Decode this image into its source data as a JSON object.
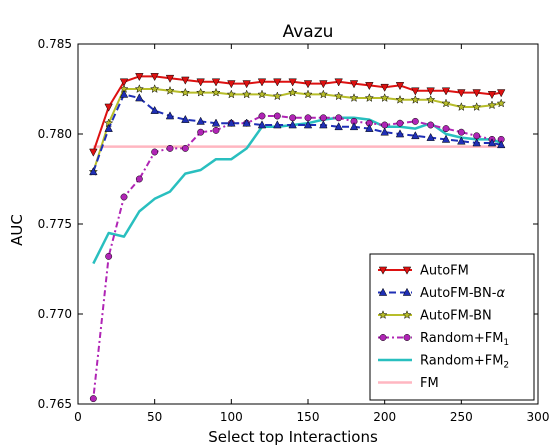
{
  "chart_data": {
    "type": "line",
    "title": "Avazu",
    "xlabel": "Select top Interactions",
    "ylabel": "AUC",
    "xlim": [
      0,
      300
    ],
    "ylim": [
      0.765,
      0.785
    ],
    "xticks": [
      0,
      50,
      100,
      150,
      200,
      250,
      300
    ],
    "yticks": [
      0.765,
      0.77,
      0.775,
      0.78,
      0.785
    ],
    "xtick_labels": [
      "0",
      "50",
      "100",
      "150",
      "200",
      "250",
      "300"
    ],
    "ytick_labels": [
      "0.765",
      "0.770",
      "0.775",
      "0.780",
      "0.785"
    ],
    "grid": false,
    "legend_position": "lower-right",
    "x": [
      10,
      20,
      30,
      40,
      50,
      60,
      70,
      80,
      90,
      100,
      110,
      120,
      130,
      140,
      150,
      160,
      170,
      180,
      190,
      200,
      210,
      220,
      230,
      240,
      250,
      260,
      270,
      276
    ],
    "series": [
      {
        "name": "AutoFM",
        "color": "#dd1111",
        "marker": "triangle-down",
        "dash": "solid",
        "values": [
          0.779,
          0.7815,
          0.7829,
          0.7832,
          0.7832,
          0.7831,
          0.783,
          0.7829,
          0.7829,
          0.7828,
          0.7828,
          0.7829,
          0.7829,
          0.7829,
          0.7828,
          0.7828,
          0.7829,
          0.7828,
          0.7827,
          0.7826,
          0.7827,
          0.7824,
          0.7824,
          0.7824,
          0.7823,
          0.7823,
          0.7822,
          0.7823
        ]
      },
      {
        "name": "AutoFM-BN-α",
        "name_base": "AutoFM-BN-",
        "name_sym": "α",
        "color": "#1f2fb5",
        "marker": "triangle-up",
        "dash": "dashed",
        "values": [
          0.7779,
          0.7803,
          0.7822,
          0.782,
          0.7813,
          0.781,
          0.7808,
          0.7807,
          0.7806,
          0.7806,
          0.7806,
          0.7805,
          0.7805,
          0.7805,
          0.7805,
          0.7805,
          0.7804,
          0.7804,
          0.7803,
          0.7801,
          0.78,
          0.7799,
          0.7798,
          0.7797,
          0.7796,
          0.7795,
          0.7795,
          0.7794
        ]
      },
      {
        "name": "AutoFM-BN",
        "color": "#b7bd2a",
        "marker": "star",
        "dash": "solid",
        "values": [
          0.7779,
          0.7806,
          0.7825,
          0.7825,
          0.7825,
          0.7824,
          0.7823,
          0.7823,
          0.7823,
          0.7822,
          0.7822,
          0.7822,
          0.7821,
          0.7823,
          0.7822,
          0.7822,
          0.7821,
          0.782,
          0.782,
          0.782,
          0.7819,
          0.7819,
          0.7819,
          0.7817,
          0.7815,
          0.7815,
          0.7816,
          0.7817
        ]
      },
      {
        "name": "Random+FM1",
        "name_base": "Random+FM",
        "name_sub": "1",
        "color": "#b025b5",
        "marker": "circle",
        "dash": "dashdot",
        "values": [
          0.7653,
          0.7732,
          0.7765,
          0.7775,
          0.779,
          0.7792,
          0.7792,
          0.7801,
          0.7802,
          0.7806,
          0.7806,
          0.781,
          0.781,
          0.7809,
          0.7809,
          0.7809,
          0.7809,
          0.7807,
          0.7806,
          0.7805,
          0.7806,
          0.7807,
          0.7805,
          0.7803,
          0.7801,
          0.7799,
          0.7797,
          0.7797
        ]
      },
      {
        "name": "Random+FM2",
        "name_base": "Random+FM",
        "name_sub": "2",
        "color": "#29bfbf",
        "marker": "none",
        "dash": "solid",
        "values": [
          0.7728,
          0.7745,
          0.7743,
          0.7757,
          0.7764,
          0.7768,
          0.7778,
          0.778,
          0.7786,
          0.7786,
          0.7792,
          0.7804,
          0.7804,
          0.7805,
          0.7806,
          0.7808,
          0.7809,
          0.7809,
          0.7808,
          0.7804,
          0.7804,
          0.7803,
          0.7806,
          0.78,
          0.7798,
          0.7797,
          0.7797,
          0.7795
        ]
      },
      {
        "name": "FM",
        "color": "#ffb6c1",
        "marker": "none",
        "dash": "solid",
        "values": [
          0.7793,
          0.7793,
          0.7793,
          0.7793,
          0.7793,
          0.7793,
          0.7793,
          0.7793,
          0.7793,
          0.7793,
          0.7793,
          0.7793,
          0.7793,
          0.7793,
          0.7793,
          0.7793,
          0.7793,
          0.7793,
          0.7793,
          0.7793,
          0.7793,
          0.7793,
          0.7793,
          0.7793,
          0.7793,
          0.7793,
          0.7793,
          0.7793
        ]
      }
    ]
  }
}
